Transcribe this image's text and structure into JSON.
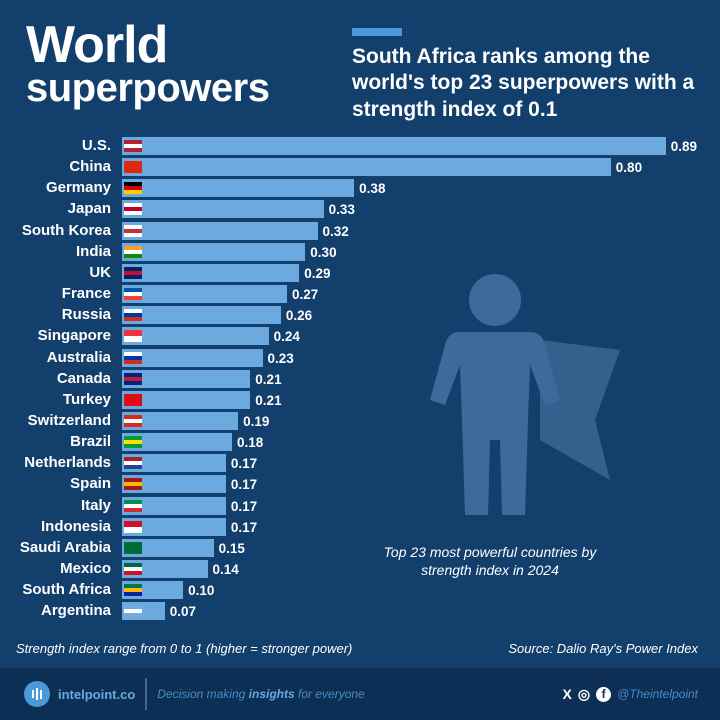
{
  "header": {
    "title_line1": "World",
    "title_line2": "superpowers",
    "subtitle": "South Africa ranks among the world's top 23 superpowers with a strength index of 0.1"
  },
  "chart_data": {
    "type": "bar",
    "orientation": "horizontal",
    "title": "Top 23 most powerful countries by strength index in 2024",
    "xlim": [
      0,
      1
    ],
    "categories": [
      "U.S.",
      "China",
      "Germany",
      "Japan",
      "South Korea",
      "India",
      "UK",
      "France",
      "Russia",
      "Singapore",
      "Australia",
      "Canada",
      "Turkey",
      "Switzerland",
      "Brazil",
      "Netherlands",
      "Spain",
      "Italy",
      "Indonesia",
      "Saudi Arabia",
      "Mexico",
      "South Africa",
      "Argentina"
    ],
    "values": [
      0.89,
      0.8,
      0.38,
      0.33,
      0.32,
      0.3,
      0.29,
      0.27,
      0.26,
      0.24,
      0.23,
      0.21,
      0.21,
      0.19,
      0.18,
      0.17,
      0.17,
      0.17,
      0.17,
      0.15,
      0.14,
      0.1,
      0.07
    ],
    "labels": [
      "0.89",
      "0.80",
      "0.38",
      "0.33",
      "0.32",
      "0.30",
      "0.29",
      "0.27",
      "0.26",
      "0.24",
      "0.23",
      "0.21",
      "0.21",
      "0.19",
      "0.18",
      "0.17",
      "0.17",
      "0.17",
      "0.17",
      "0.15",
      "0.14",
      "0.10",
      "0.07"
    ],
    "flag_colors": [
      [
        "#b22234",
        "#fff",
        "#b22234"
      ],
      [
        "#de2910",
        "#de2910"
      ],
      [
        "#000",
        "#dd0000",
        "#ffce00"
      ],
      [
        "#fff",
        "#bc002d",
        "#fff"
      ],
      [
        "#fff",
        "#cd2e3a",
        "#fff"
      ],
      [
        "#ff9933",
        "#fff",
        "#138808"
      ],
      [
        "#012169",
        "#c8102e",
        "#012169"
      ],
      [
        "#0055a4",
        "#fff",
        "#ef4135"
      ],
      [
        "#fff",
        "#0039a6",
        "#d52b1e"
      ],
      [
        "#ef3340",
        "#fff"
      ],
      [
        "#fff",
        "#0039a6",
        "#d52b1e"
      ],
      [
        "#00247d",
        "#cf142b",
        "#00247d"
      ],
      [
        "#e30a17",
        "#e30a17"
      ],
      [
        "#d52b1e",
        "#fff",
        "#d52b1e"
      ],
      [
        "#009c3b",
        "#ffdf00",
        "#009c3b"
      ],
      [
        "#ae1c28",
        "#fff",
        "#21468b"
      ],
      [
        "#aa151b",
        "#f1bf00",
        "#aa151b"
      ],
      [
        "#009246",
        "#fff",
        "#ce2b37"
      ],
      [
        "#ce1126",
        "#fff"
      ],
      [
        "#006c35",
        "#006c35"
      ],
      [
        "#006847",
        "#fff",
        "#ce1126"
      ],
      [
        "#007a4d",
        "#ffb612",
        "#002395"
      ],
      [
        "#74acdf",
        "#fff",
        "#74acdf"
      ]
    ]
  },
  "note": "Top 23 most powerful countries by strength index in 2024",
  "footnote": "Strength index range from 0 to 1 (higher = stronger power)",
  "source": "Source: Dalio Ray's Power Index",
  "footer": {
    "brand": "intelpoint.co",
    "tag_pre": "Decision making ",
    "tag_bold": "insights",
    "tag_post": " for everyone",
    "x": "X",
    "instagram": "◎",
    "facebook": "f",
    "handle": "@Theintelpoint"
  },
  "colors": {
    "background": "#133f6c",
    "bar": "#6ba9df",
    "footer": "#0e2f55"
  }
}
